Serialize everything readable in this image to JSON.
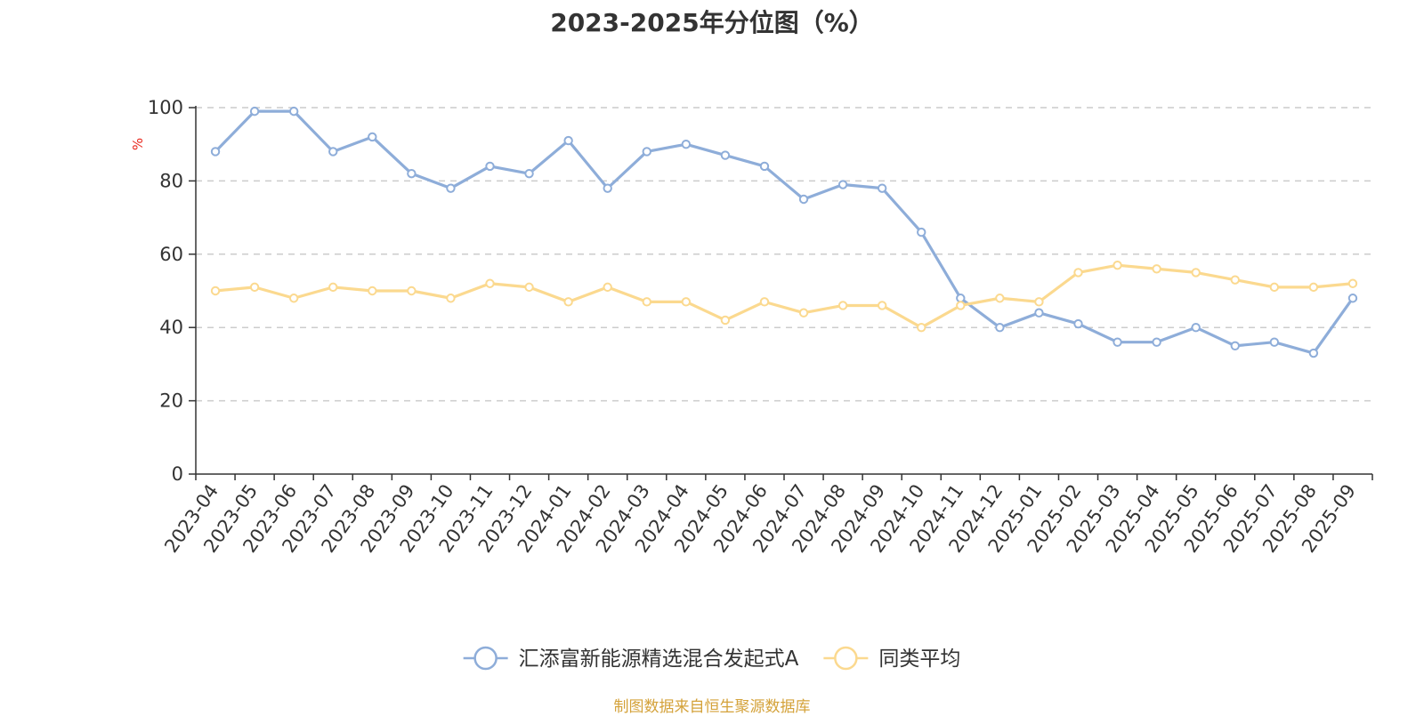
{
  "chart_data": {
    "type": "line",
    "title": "2023-2025年分位图（%）",
    "ylabel": "%",
    "ylim": [
      0,
      100
    ],
    "yticks": [
      0,
      20,
      40,
      60,
      80,
      100
    ],
    "grid": "horizontal dashed",
    "legend_position": "bottom",
    "categories": [
      "2023-04",
      "2023-05",
      "2023-06",
      "2023-07",
      "2023-08",
      "2023-09",
      "2023-10",
      "2023-11",
      "2023-12",
      "2024-01",
      "2024-02",
      "2024-03",
      "2024-04",
      "2024-05",
      "2024-06",
      "2024-07",
      "2024-08",
      "2024-09",
      "2024-10",
      "2024-11",
      "2024-12",
      "2025-01",
      "2025-02",
      "2025-03",
      "2025-04",
      "2025-05",
      "2025-06",
      "2025-07",
      "2025-08",
      "2025-09"
    ],
    "series": [
      {
        "name": "汇添富新能源精选混合发起式A",
        "color": "#8eadd9",
        "values": [
          88,
          99,
          99,
          88,
          92,
          82,
          78,
          84,
          82,
          91,
          78,
          88,
          90,
          87,
          84,
          75,
          79,
          78,
          66,
          48,
          40,
          44,
          41,
          36,
          36,
          40,
          35,
          36,
          33,
          48
        ]
      },
      {
        "name": "同类平均",
        "color": "#fbd98f",
        "values": [
          50,
          51,
          48,
          51,
          50,
          50,
          48,
          52,
          51,
          47,
          51,
          47,
          47,
          42,
          47,
          44,
          46,
          46,
          40,
          46,
          48,
          47,
          55,
          57,
          56,
          55,
          53,
          51,
          51,
          52
        ]
      }
    ]
  },
  "footer": {
    "source": "制图数据来自恒生聚源数据库"
  }
}
